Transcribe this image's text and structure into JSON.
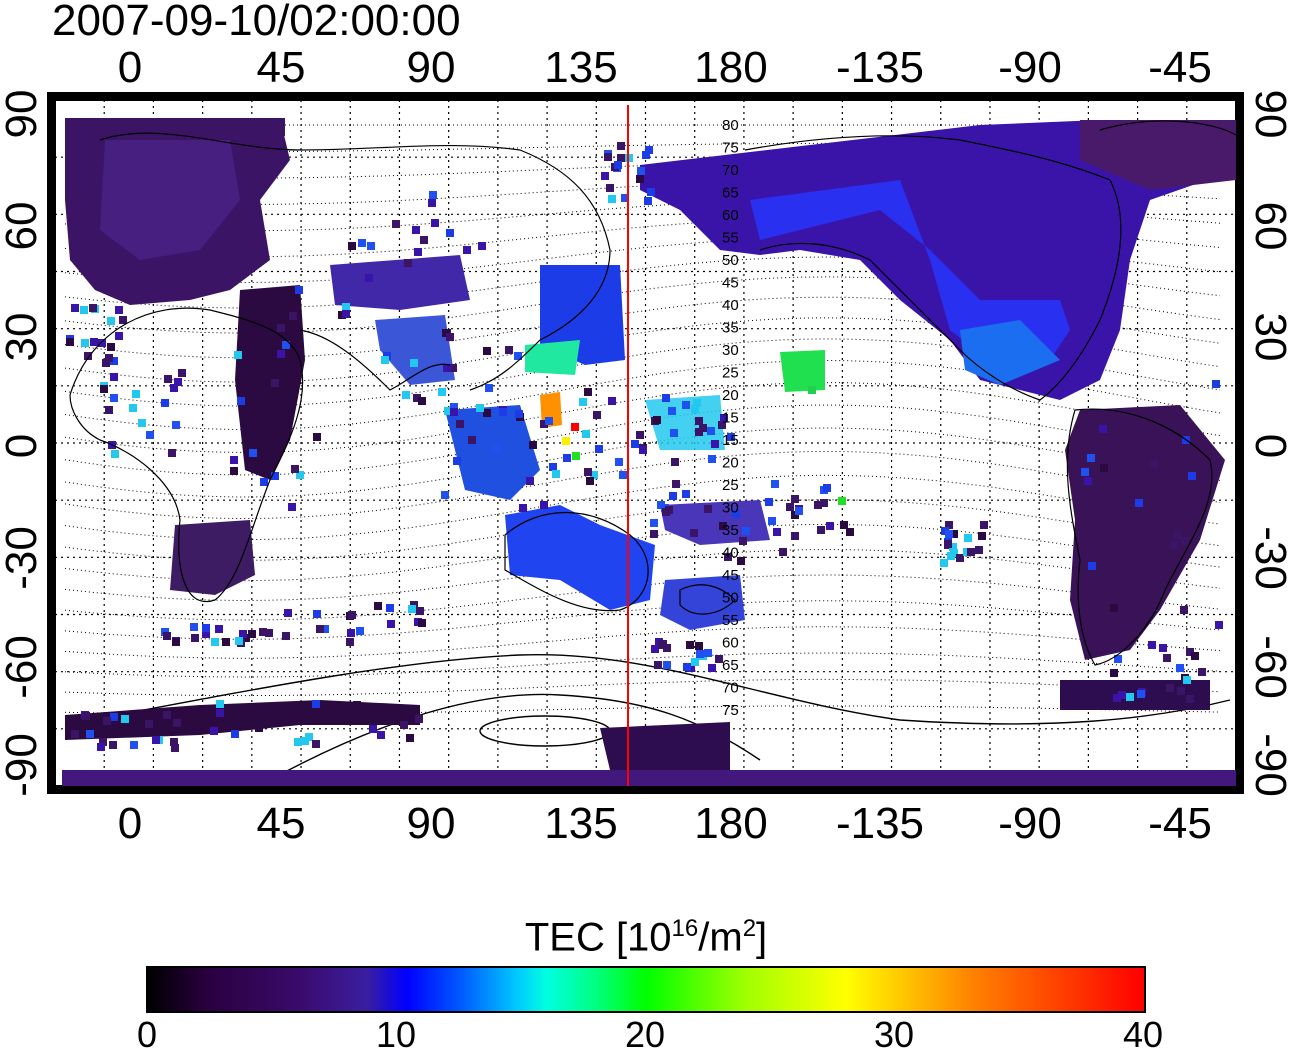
{
  "timestamp": "2007-09-10/02:00:00",
  "map": {
    "lon_labels": [
      "0",
      "45",
      "90",
      "135",
      "180",
      "-135",
      "-90",
      "-45"
    ],
    "lat_labels": [
      "90",
      "60",
      "30",
      "0",
      "-30",
      "-60",
      "-90"
    ],
    "central_meridian_line_color": "#ff0000",
    "dip_latitude_contours": [
      "80",
      "75",
      "70",
      "65",
      "60",
      "55",
      "50",
      "45",
      "40",
      "35",
      "30",
      "25",
      "20",
      "15",
      "15",
      "20",
      "25",
      "30",
      "35",
      "40",
      "45",
      "50",
      "55",
      "60",
      "65",
      "70",
      "75"
    ]
  },
  "colorbar": {
    "title_main": "TEC  [10",
    "title_sup1": "16",
    "title_mid": "/m",
    "title_sup2": "2",
    "title_end": "]",
    "ticks": [
      "0",
      "10",
      "20",
      "30",
      "40"
    ],
    "range": [
      0,
      40
    ],
    "colors": [
      "#000000",
      "#3a0a6a",
      "#0000ff",
      "#00ffff",
      "#00ff00",
      "#ffff00",
      "#ff0000"
    ]
  }
}
